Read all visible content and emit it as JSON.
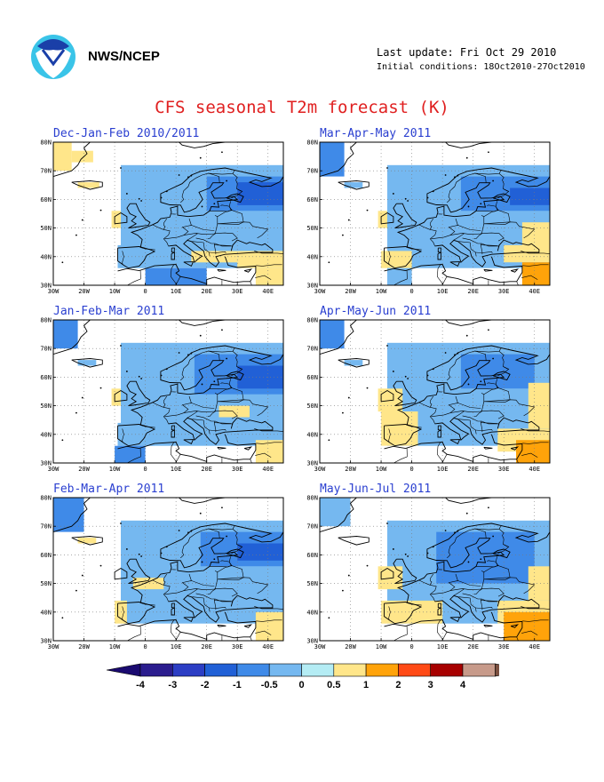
{
  "header": {
    "org": "NWS/NCEP",
    "last_update": "Last update: Fri Oct 29 2010",
    "initial_conditions": "Initial conditions: 18Oct2010-27Oct2010"
  },
  "title": "CFS seasonal T2m forecast (K)",
  "colors": {
    "title": "#e02020",
    "panel_title": "#2a3fd0"
  },
  "chart_data": {
    "type": "heatmap",
    "variable": "T2m anomaly (K)",
    "axes": {
      "x_ticks": [
        "30W",
        "20W",
        "10W",
        "0",
        "10E",
        "20E",
        "30E",
        "40E"
      ],
      "x_values": [
        -30,
        -20,
        -10,
        0,
        10,
        20,
        30,
        40
      ],
      "y_ticks": [
        "30N",
        "40N",
        "50N",
        "60N",
        "70N",
        "80N"
      ],
      "y_values": [
        30,
        40,
        50,
        60,
        70,
        80
      ],
      "xlim": [
        -30,
        45
      ],
      "ylim": [
        30,
        80
      ],
      "grid": true
    },
    "panels": [
      {
        "title": "Dec-Jan-Feb 2010/2011",
        "regions": [
          {
            "lon": [
              -30,
              -24
            ],
            "lat": [
              70,
              80
            ],
            "level": "0.5"
          },
          {
            "lon": [
              -24,
              -17
            ],
            "lat": [
              73,
              77
            ],
            "level": "0.5"
          },
          {
            "lon": [
              -22,
              -15
            ],
            "lat": [
              64,
              66
            ],
            "level": "0.5"
          },
          {
            "lon": [
              -11,
              -5
            ],
            "lat": [
              50,
              56
            ],
            "level": "0.5"
          },
          {
            "lon": [
              -8,
              45
            ],
            "lat": [
              36,
              72
            ],
            "level": "-0.5"
          },
          {
            "lon": [
              20,
              45
            ],
            "lat": [
              56,
              68
            ],
            "level": "-1"
          },
          {
            "lon": [
              30,
              45
            ],
            "lat": [
              58,
              66
            ],
            "level": "-2"
          },
          {
            "lon": [
              -9,
              3
            ],
            "lat": [
              36,
              44
            ],
            "level": "-0.5"
          },
          {
            "lon": [
              0,
              20
            ],
            "lat": [
              30,
              36
            ],
            "level": "-1"
          },
          {
            "lon": [
              15,
              30
            ],
            "lat": [
              38,
              42
            ],
            "level": "0.5"
          },
          {
            "lon": [
              30,
              45
            ],
            "lat": [
              36,
              42
            ],
            "level": "0.5"
          },
          {
            "lon": [
              36,
              45
            ],
            "lat": [
              30,
              36
            ],
            "level": "0.5"
          }
        ]
      },
      {
        "title": "Mar-Apr-May 2011",
        "regions": [
          {
            "lon": [
              -30,
              -22
            ],
            "lat": [
              68,
              80
            ],
            "level": "-1"
          },
          {
            "lon": [
              -22,
              -16
            ],
            "lat": [
              64,
              66
            ],
            "level": "-0.5"
          },
          {
            "lon": [
              -11,
              -5
            ],
            "lat": [
              50,
              56
            ],
            "level": "0.5"
          },
          {
            "lon": [
              -8,
              45
            ],
            "lat": [
              36,
              72
            ],
            "level": "-0.5"
          },
          {
            "lon": [
              16,
              45
            ],
            "lat": [
              56,
              68
            ],
            "level": "-1"
          },
          {
            "lon": [
              32,
              45
            ],
            "lat": [
              58,
              64
            ],
            "level": "-2"
          },
          {
            "lon": [
              -10,
              0
            ],
            "lat": [
              36,
              42
            ],
            "level": "0.5"
          },
          {
            "lon": [
              -8,
              0
            ],
            "lat": [
              30,
              36
            ],
            "level": "-0.5"
          },
          {
            "lon": [
              30,
              45
            ],
            "lat": [
              38,
              44
            ],
            "level": "0.5"
          },
          {
            "lon": [
              36,
              45
            ],
            "lat": [
              44,
              52
            ],
            "level": "0.5"
          },
          {
            "lon": [
              36,
              45
            ],
            "lat": [
              30,
              38
            ],
            "level": "1"
          }
        ]
      },
      {
        "title": "Jan-Feb-Mar 2011",
        "regions": [
          {
            "lon": [
              -30,
              -22
            ],
            "lat": [
              70,
              80
            ],
            "level": "-1"
          },
          {
            "lon": [
              -22,
              -16
            ],
            "lat": [
              64,
              66
            ],
            "level": "-0.5"
          },
          {
            "lon": [
              -11,
              -4
            ],
            "lat": [
              50,
              56
            ],
            "level": "0.5"
          },
          {
            "lon": [
              -8,
              45
            ],
            "lat": [
              36,
              72
            ],
            "level": "-0.5"
          },
          {
            "lon": [
              16,
              45
            ],
            "lat": [
              54,
              68
            ],
            "level": "-1"
          },
          {
            "lon": [
              30,
              45
            ],
            "lat": [
              56,
              64
            ],
            "level": "-2"
          },
          {
            "lon": [
              24,
              34
            ],
            "lat": [
              46,
              50
            ],
            "level": "0.5"
          },
          {
            "lon": [
              -9,
              3
            ],
            "lat": [
              36,
              44
            ],
            "level": "-0.5"
          },
          {
            "lon": [
              -10,
              0
            ],
            "lat": [
              30,
              36
            ],
            "level": "-1"
          },
          {
            "lon": [
              36,
              45
            ],
            "lat": [
              30,
              38
            ],
            "level": "0.5"
          }
        ]
      },
      {
        "title": "Apr-May-Jun 2011",
        "regions": [
          {
            "lon": [
              -30,
              -22
            ],
            "lat": [
              70,
              80
            ],
            "level": "-1"
          },
          {
            "lon": [
              -22,
              -16
            ],
            "lat": [
              64,
              66
            ],
            "level": "-0.5"
          },
          {
            "lon": [
              -8,
              45
            ],
            "lat": [
              36,
              72
            ],
            "level": "-0.5"
          },
          {
            "lon": [
              16,
              40
            ],
            "lat": [
              56,
              68
            ],
            "level": "-1"
          },
          {
            "lon": [
              -11,
              -3
            ],
            "lat": [
              48,
              56
            ],
            "level": "0.5"
          },
          {
            "lon": [
              -10,
              2
            ],
            "lat": [
              36,
              48
            ],
            "level": "0.5"
          },
          {
            "lon": [
              28,
              45
            ],
            "lat": [
              34,
              42
            ],
            "level": "0.5"
          },
          {
            "lon": [
              38,
              45
            ],
            "lat": [
              42,
              58
            ],
            "level": "0.5"
          },
          {
            "lon": [
              34,
              45
            ],
            "lat": [
              30,
              38
            ],
            "level": "1"
          }
        ]
      },
      {
        "title": "Feb-Mar-Apr 2011",
        "regions": [
          {
            "lon": [
              -30,
              -20
            ],
            "lat": [
              68,
              80
            ],
            "level": "-1"
          },
          {
            "lon": [
              -22,
              -16
            ],
            "lat": [
              64,
              66
            ],
            "level": "0.5"
          },
          {
            "lon": [
              -8,
              45
            ],
            "lat": [
              36,
              72
            ],
            "level": "-0.5"
          },
          {
            "lon": [
              18,
              45
            ],
            "lat": [
              56,
              68
            ],
            "level": "-1"
          },
          {
            "lon": [
              30,
              45
            ],
            "lat": [
              58,
              64
            ],
            "level": "-2"
          },
          {
            "lon": [
              -10,
              -6
            ],
            "lat": [
              36,
              44
            ],
            "level": "0.5"
          },
          {
            "lon": [
              -4,
              6
            ],
            "lat": [
              48,
              52
            ],
            "level": "0.5"
          },
          {
            "lon": [
              36,
              45
            ],
            "lat": [
              30,
              40
            ],
            "level": "0.5"
          }
        ]
      },
      {
        "title": "May-Jun-Jul 2011",
        "regions": [
          {
            "lon": [
              -30,
              -20
            ],
            "lat": [
              70,
              80
            ],
            "level": "-0.5"
          },
          {
            "lon": [
              -8,
              45
            ],
            "lat": [
              36,
              72
            ],
            "level": "-0.5"
          },
          {
            "lon": [
              8,
              40
            ],
            "lat": [
              50,
              68
            ],
            "level": "-1"
          },
          {
            "lon": [
              -11,
              -3
            ],
            "lat": [
              48,
              56
            ],
            "level": "0.5"
          },
          {
            "lon": [
              -10,
              10
            ],
            "lat": [
              36,
              44
            ],
            "level": "0.5"
          },
          {
            "lon": [
              28,
              45
            ],
            "lat": [
              36,
              44
            ],
            "level": "0.5"
          },
          {
            "lon": [
              30,
              45
            ],
            "lat": [
              30,
              40
            ],
            "level": "1"
          },
          {
            "lon": [
              38,
              45
            ],
            "lat": [
              44,
              56
            ],
            "level": "0.5"
          }
        ]
      }
    ]
  },
  "legend": {
    "labels": [
      "-4",
      "-3",
      "-2",
      "-1",
      "-0.5",
      "0",
      "0.5",
      "1",
      "2",
      "3",
      "4"
    ],
    "colors": [
      "#2b1d8e",
      "#2c3ec4",
      "#2160d6",
      "#3f8ae8",
      "#75b8f0",
      "#b4ecf4",
      "#ffe68a",
      "#ffa30a",
      "#ff4a16",
      "#a70000",
      "#c79a8a"
    ],
    "arrow_left": "#1a0a70",
    "arrow_right": "#7a5040"
  }
}
